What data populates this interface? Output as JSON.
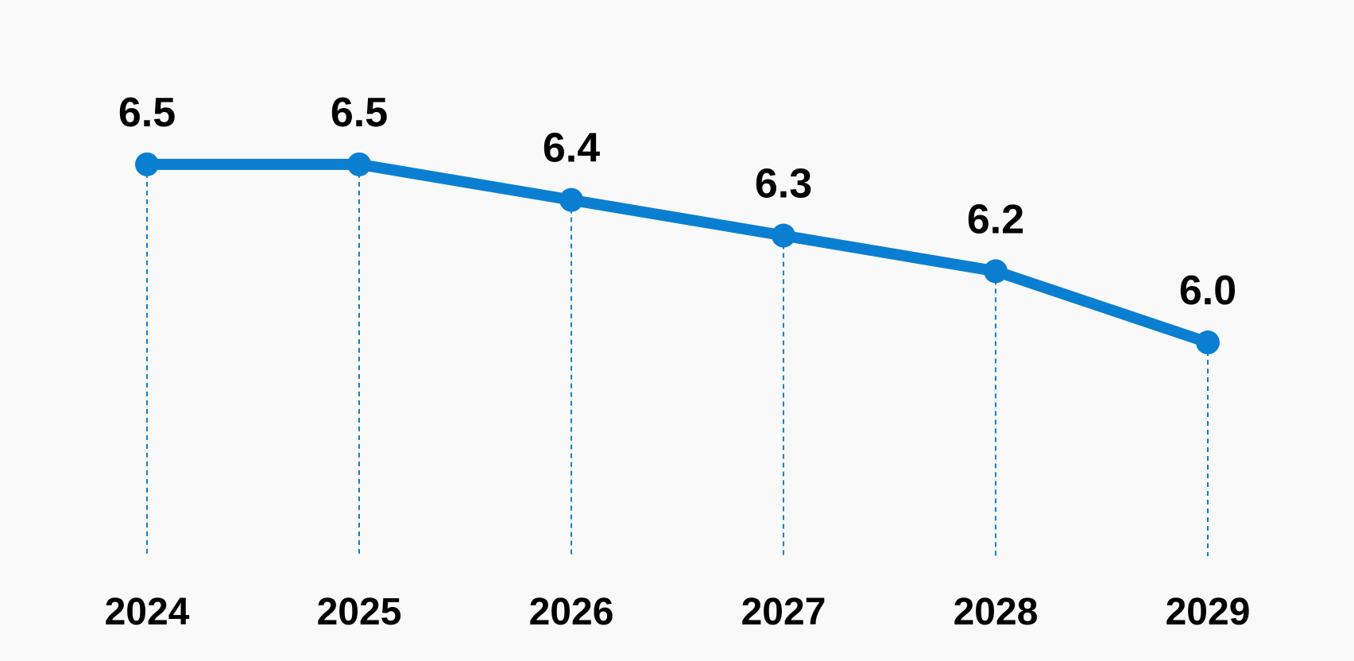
{
  "chart_data": {
    "type": "line",
    "categories": [
      "2024",
      "2025",
      "2026",
      "2027",
      "2028",
      "2029"
    ],
    "values": [
      6.5,
      6.5,
      6.4,
      6.3,
      6.2,
      6.0
    ],
    "data_labels": [
      "6.5",
      "6.5",
      "6.4",
      "6.3",
      "6.2",
      "6.0"
    ],
    "title": "",
    "xlabel": "",
    "ylabel": "",
    "ylim": [
      5.4,
      6.6
    ],
    "grid": false,
    "drop_lines": true,
    "legend": "none",
    "line_color": "#0a7fd1",
    "text_color": "#000000",
    "background": "#f9f9f9"
  }
}
